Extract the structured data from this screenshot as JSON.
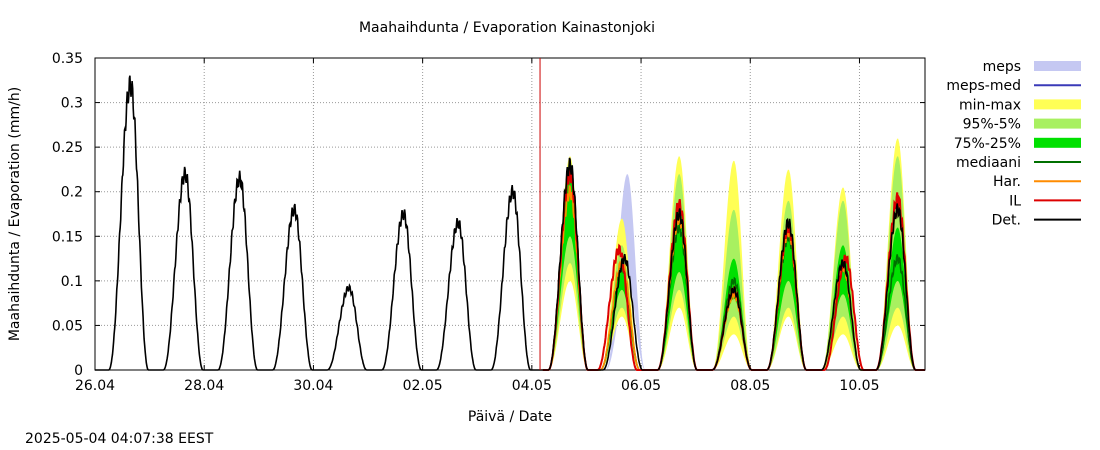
{
  "timestamp": "2025-05-04 04:07:38 EEST",
  "chart_data": {
    "type": "line",
    "title": "Maahaihdunta / Evaporation  Kainastonjoki",
    "xlabel": "Päivä / Date",
    "ylabel": "Maahaihdunta / Evaporation (mm/h)",
    "ylim": [
      0,
      0.35
    ],
    "xlim_days": [
      0,
      15.2
    ],
    "grid": true,
    "legend_position": "right",
    "yticks": [
      "0",
      "0.05",
      "0.1",
      "0.15",
      "0.2",
      "0.25",
      "0.3",
      "0.35"
    ],
    "xticks": [
      {
        "day": 0,
        "label": "26.04"
      },
      {
        "day": 2,
        "label": "28.04"
      },
      {
        "day": 4,
        "label": "30.04"
      },
      {
        "day": 6,
        "label": "02.05"
      },
      {
        "day": 8,
        "label": "04.05"
      },
      {
        "day": 10,
        "label": "06.05"
      },
      {
        "day": 12,
        "label": "08.05"
      },
      {
        "day": 14,
        "label": "10.05"
      }
    ],
    "forecast_start_day": 8.15,
    "legend": [
      {
        "label": "meps",
        "kind": "band",
        "color": "#c5c8f2"
      },
      {
        "label": "meps-med",
        "kind": "line",
        "color": "#3a3ab8"
      },
      {
        "label": "min-max",
        "kind": "band",
        "color": "#ffff55"
      },
      {
        "label": "95%-5%",
        "kind": "band",
        "color": "#a8f060"
      },
      {
        "label": "75%-25%",
        "kind": "band",
        "color": "#00e000"
      },
      {
        "label": "mediaani",
        "kind": "line",
        "color": "#007000"
      },
      {
        "label": "Har.",
        "kind": "line",
        "color": "#ff8c00"
      },
      {
        "label": "IL",
        "kind": "line",
        "color": "#dd0000"
      },
      {
        "label": "Det.",
        "kind": "line",
        "color": "#000000"
      }
    ],
    "series": [
      {
        "name": "Det.",
        "color": "#000000",
        "daily_peaks": [
          {
            "day": 0.65,
            "value": 0.32
          },
          {
            "day": 1.65,
            "value": 0.22
          },
          {
            "day": 2.65,
            "value": 0.215
          },
          {
            "day": 3.65,
            "value": 0.18
          },
          {
            "day": 4.65,
            "value": 0.092
          },
          {
            "day": 5.65,
            "value": 0.175
          },
          {
            "day": 6.65,
            "value": 0.165
          },
          {
            "day": 7.65,
            "value": 0.2
          },
          {
            "day": 8.7,
            "value": 0.23
          },
          {
            "day": 9.7,
            "value": 0.125
          },
          {
            "day": 10.7,
            "value": 0.175
          },
          {
            "day": 11.7,
            "value": 0.09
          },
          {
            "day": 12.7,
            "value": 0.165
          },
          {
            "day": 13.7,
            "value": 0.12
          },
          {
            "day": 14.7,
            "value": 0.18
          }
        ]
      },
      {
        "name": "IL",
        "color": "#dd0000",
        "daily_peaks": [
          {
            "day": 8.7,
            "value": 0.22
          },
          {
            "day": 9.6,
            "value": 0.135
          },
          {
            "day": 10.7,
            "value": 0.185
          },
          {
            "day": 11.7,
            "value": 0.09
          },
          {
            "day": 12.7,
            "value": 0.16
          },
          {
            "day": 13.75,
            "value": 0.125
          },
          {
            "day": 14.7,
            "value": 0.192
          }
        ]
      },
      {
        "name": "Har.",
        "color": "#ff8c00",
        "daily_peaks": [
          {
            "day": 8.7,
            "value": 0.2
          },
          {
            "day": 9.65,
            "value": 0.12
          },
          {
            "day": 10.7,
            "value": 0.17
          },
          {
            "day": 11.7,
            "value": 0.085
          },
          {
            "day": 12.7,
            "value": 0.155
          },
          {
            "day": 13.7,
            "value": 0.115
          },
          {
            "day": 14.7,
            "value": 0.18
          }
        ]
      },
      {
        "name": "mediaani",
        "color": "#007000",
        "daily_peaks": [
          {
            "day": 8.7,
            "value": 0.225
          },
          {
            "day": 9.65,
            "value": 0.115
          },
          {
            "day": 10.7,
            "value": 0.16
          },
          {
            "day": 11.7,
            "value": 0.1
          },
          {
            "day": 12.7,
            "value": 0.15
          },
          {
            "day": 13.7,
            "value": 0.115
          },
          {
            "day": 14.7,
            "value": 0.125
          }
        ]
      }
    ],
    "bands": [
      {
        "name": "min-max",
        "color": "#ffff55",
        "daily_peaks": [
          {
            "day": 8.7,
            "low": 0.1,
            "high": 0.24
          },
          {
            "day": 9.65,
            "low": 0.06,
            "high": 0.17
          },
          {
            "day": 10.7,
            "low": 0.07,
            "high": 0.24
          },
          {
            "day": 11.7,
            "low": 0.04,
            "high": 0.235
          },
          {
            "day": 12.7,
            "low": 0.06,
            "high": 0.225
          },
          {
            "day": 13.7,
            "low": 0.04,
            "high": 0.205
          },
          {
            "day": 14.7,
            "low": 0.05,
            "high": 0.26
          }
        ]
      },
      {
        "name": "95%-5%",
        "color": "#a8f060",
        "daily_peaks": [
          {
            "day": 8.7,
            "low": 0.12,
            "high": 0.235
          },
          {
            "day": 9.65,
            "low": 0.07,
            "high": 0.14
          },
          {
            "day": 10.7,
            "low": 0.09,
            "high": 0.22
          },
          {
            "day": 11.7,
            "low": 0.06,
            "high": 0.18
          },
          {
            "day": 12.7,
            "low": 0.07,
            "high": 0.19
          },
          {
            "day": 13.7,
            "low": 0.06,
            "high": 0.19
          },
          {
            "day": 14.7,
            "low": 0.07,
            "high": 0.24
          }
        ]
      },
      {
        "name": "75%-25%",
        "color": "#00e000",
        "daily_peaks": [
          {
            "day": 8.7,
            "low": 0.15,
            "high": 0.23
          },
          {
            "day": 9.65,
            "low": 0.09,
            "high": 0.115
          },
          {
            "day": 10.7,
            "low": 0.11,
            "high": 0.185
          },
          {
            "day": 11.7,
            "low": 0.08,
            "high": 0.125
          },
          {
            "day": 12.7,
            "low": 0.1,
            "high": 0.155
          },
          {
            "day": 13.7,
            "low": 0.085,
            "high": 0.14
          },
          {
            "day": 14.7,
            "low": 0.1,
            "high": 0.16
          }
        ]
      },
      {
        "name": "meps",
        "color": "#c5c8f2",
        "daily_peaks": [
          {
            "day": 8.7,
            "low": 0.15,
            "high": 0.18
          },
          {
            "day": 9.75,
            "low": 0.1,
            "high": 0.22
          }
        ]
      }
    ]
  }
}
